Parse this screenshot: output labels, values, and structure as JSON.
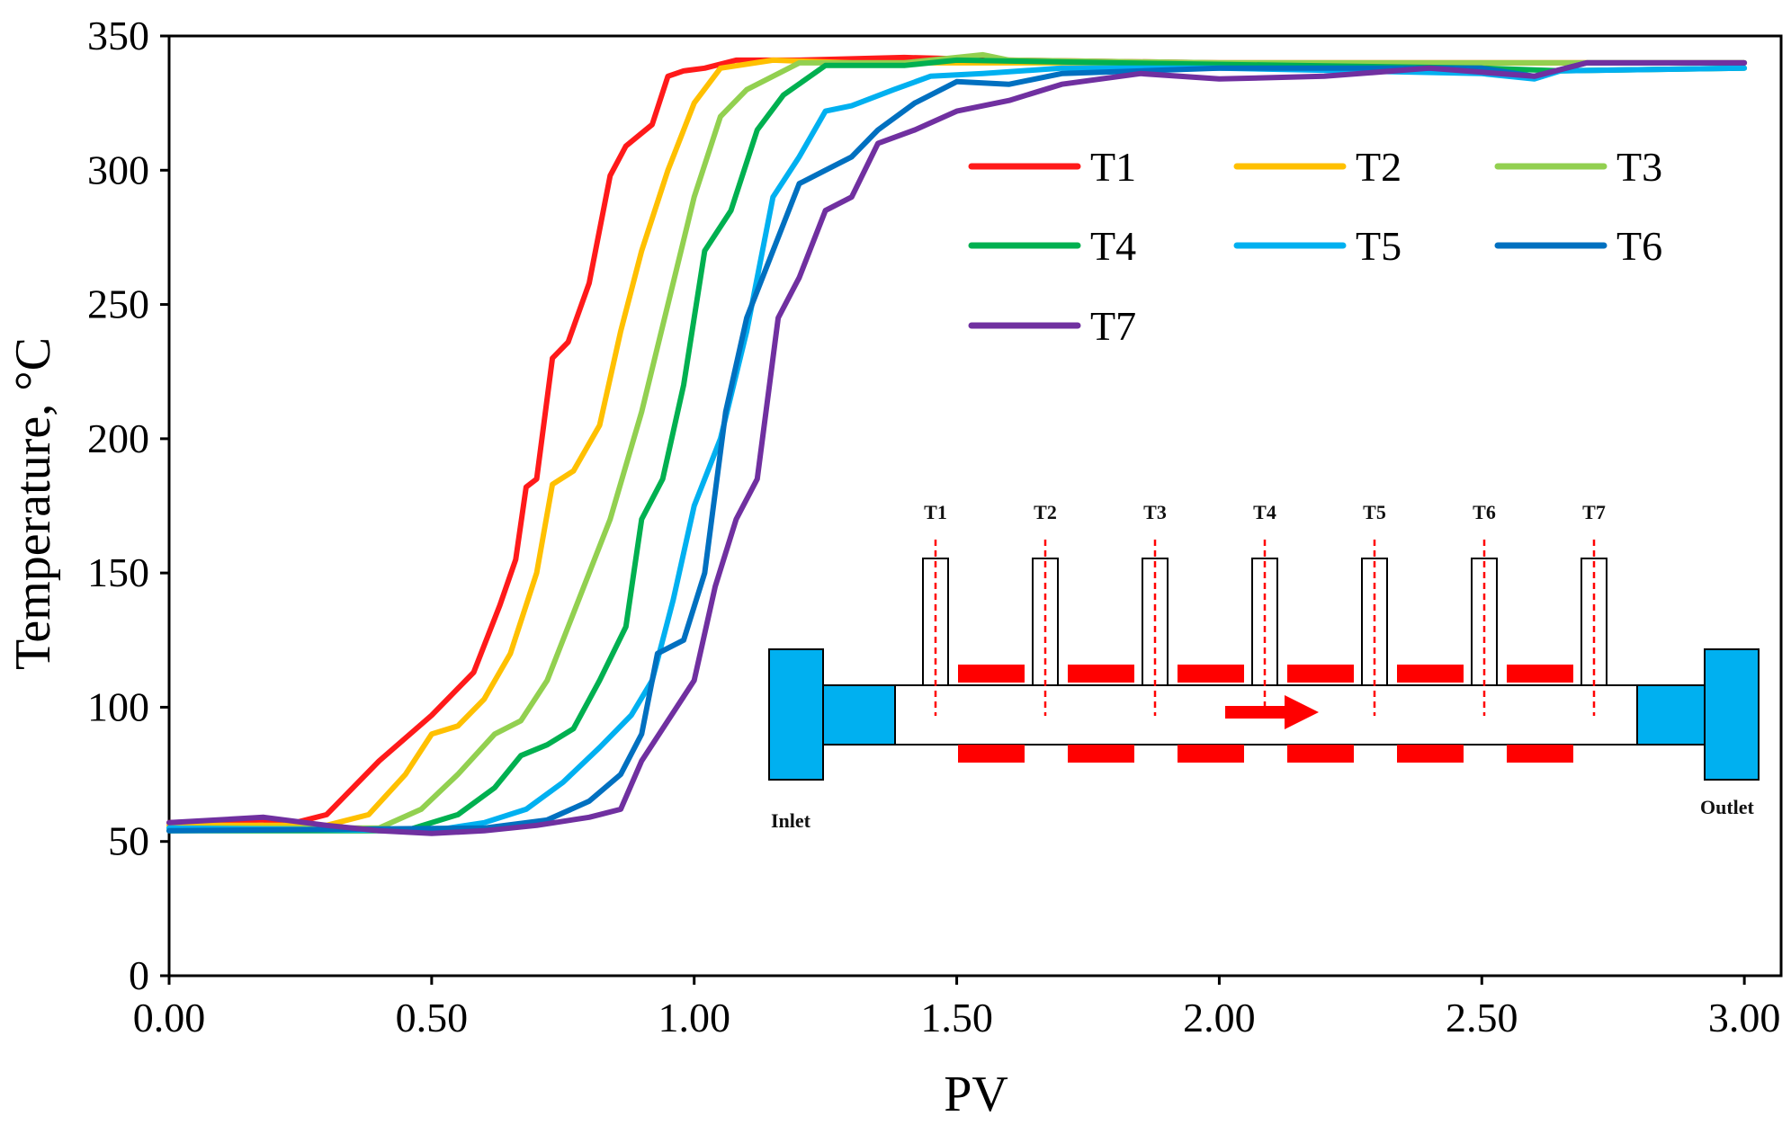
{
  "chart_data": {
    "type": "line",
    "title": "",
    "xlabel": "PV",
    "ylabel": "Temperature, °C",
    "xlim": [
      0,
      3.07
    ],
    "ylim": [
      0,
      350
    ],
    "x_ticks": [
      "0.00",
      "0.50",
      "1.00",
      "1.50",
      "2.00",
      "2.50",
      "3.00"
    ],
    "y_ticks": [
      "0",
      "50",
      "100",
      "150",
      "200",
      "250",
      "300",
      "350"
    ],
    "grid": false,
    "legend_position": "top-right",
    "series": [
      {
        "name": "T1",
        "color": "#ff1a1a",
        "points": [
          [
            0,
            57
          ],
          [
            0.18,
            58
          ],
          [
            0.22,
            56
          ],
          [
            0.3,
            60
          ],
          [
            0.4,
            80
          ],
          [
            0.5,
            97
          ],
          [
            0.58,
            113
          ],
          [
            0.63,
            138
          ],
          [
            0.66,
            155
          ],
          [
            0.68,
            182
          ],
          [
            0.7,
            185
          ],
          [
            0.73,
            230
          ],
          [
            0.76,
            236
          ],
          [
            0.8,
            258
          ],
          [
            0.84,
            298
          ],
          [
            0.87,
            309
          ],
          [
            0.92,
            317
          ],
          [
            0.95,
            335
          ],
          [
            0.98,
            337
          ],
          [
            1.02,
            338
          ],
          [
            1.08,
            341
          ],
          [
            1.2,
            341
          ],
          [
            1.4,
            342
          ],
          [
            1.6,
            341
          ],
          [
            2.0,
            340
          ],
          [
            2.5,
            340
          ],
          [
            3.0,
            340
          ]
        ]
      },
      {
        "name": "T2",
        "color": "#ffc000",
        "points": [
          [
            0,
            56
          ],
          [
            0.3,
            56
          ],
          [
            0.38,
            60
          ],
          [
            0.45,
            75
          ],
          [
            0.5,
            90
          ],
          [
            0.55,
            93
          ],
          [
            0.6,
            103
          ],
          [
            0.65,
            120
          ],
          [
            0.7,
            150
          ],
          [
            0.73,
            183
          ],
          [
            0.77,
            188
          ],
          [
            0.82,
            205
          ],
          [
            0.86,
            240
          ],
          [
            0.9,
            270
          ],
          [
            0.95,
            300
          ],
          [
            1.0,
            325
          ],
          [
            1.05,
            338
          ],
          [
            1.15,
            341
          ],
          [
            1.3,
            340
          ],
          [
            1.5,
            340
          ],
          [
            2.0,
            340
          ],
          [
            2.5,
            340
          ],
          [
            3.0,
            340
          ]
        ]
      },
      {
        "name": "T3",
        "color": "#92d050",
        "points": [
          [
            0,
            55
          ],
          [
            0.4,
            55
          ],
          [
            0.48,
            62
          ],
          [
            0.55,
            75
          ],
          [
            0.62,
            90
          ],
          [
            0.67,
            95
          ],
          [
            0.72,
            110
          ],
          [
            0.78,
            140
          ],
          [
            0.84,
            170
          ],
          [
            0.9,
            210
          ],
          [
            0.95,
            250
          ],
          [
            1.0,
            290
          ],
          [
            1.05,
            320
          ],
          [
            1.1,
            330
          ],
          [
            1.2,
            340
          ],
          [
            1.4,
            340
          ],
          [
            1.55,
            343
          ],
          [
            1.6,
            341
          ],
          [
            2.0,
            340
          ],
          [
            2.5,
            340
          ],
          [
            3.0,
            340
          ]
        ]
      },
      {
        "name": "T4",
        "color": "#00b050",
        "points": [
          [
            0,
            54
          ],
          [
            0.45,
            54
          ],
          [
            0.55,
            60
          ],
          [
            0.62,
            70
          ],
          [
            0.67,
            82
          ],
          [
            0.72,
            86
          ],
          [
            0.77,
            92
          ],
          [
            0.82,
            110
          ],
          [
            0.87,
            130
          ],
          [
            0.9,
            170
          ],
          [
            0.94,
            185
          ],
          [
            0.98,
            220
          ],
          [
            1.02,
            270
          ],
          [
            1.07,
            285
          ],
          [
            1.12,
            315
          ],
          [
            1.17,
            328
          ],
          [
            1.25,
            339
          ],
          [
            1.4,
            339
          ],
          [
            1.5,
            341
          ],
          [
            1.8,
            340
          ],
          [
            2.5,
            338
          ],
          [
            2.65,
            337
          ],
          [
            3.0,
            338
          ]
        ]
      },
      {
        "name": "T5",
        "color": "#00b0f0",
        "points": [
          [
            0,
            55
          ],
          [
            0.5,
            54
          ],
          [
            0.6,
            57
          ],
          [
            0.68,
            62
          ],
          [
            0.75,
            72
          ],
          [
            0.82,
            85
          ],
          [
            0.88,
            97
          ],
          [
            0.92,
            110
          ],
          [
            0.96,
            140
          ],
          [
            1.0,
            175
          ],
          [
            1.05,
            200
          ],
          [
            1.1,
            240
          ],
          [
            1.15,
            290
          ],
          [
            1.2,
            305
          ],
          [
            1.25,
            322
          ],
          [
            1.3,
            324
          ],
          [
            1.38,
            330
          ],
          [
            1.45,
            335
          ],
          [
            1.55,
            336
          ],
          [
            1.7,
            338
          ],
          [
            2.0,
            338
          ],
          [
            2.5,
            336
          ],
          [
            2.6,
            334
          ],
          [
            2.65,
            337
          ],
          [
            3.0,
            338
          ]
        ]
      },
      {
        "name": "T6",
        "color": "#0070c0",
        "points": [
          [
            0,
            54
          ],
          [
            0.6,
            55
          ],
          [
            0.72,
            58
          ],
          [
            0.8,
            65
          ],
          [
            0.86,
            75
          ],
          [
            0.9,
            90
          ],
          [
            0.93,
            120
          ],
          [
            0.98,
            125
          ],
          [
            1.02,
            150
          ],
          [
            1.06,
            210
          ],
          [
            1.1,
            245
          ],
          [
            1.15,
            270
          ],
          [
            1.2,
            295
          ],
          [
            1.25,
            300
          ],
          [
            1.3,
            305
          ],
          [
            1.35,
            315
          ],
          [
            1.42,
            325
          ],
          [
            1.5,
            333
          ],
          [
            1.6,
            332
          ],
          [
            1.7,
            336
          ],
          [
            2.0,
            338
          ],
          [
            2.5,
            338
          ],
          [
            2.6,
            335
          ],
          [
            2.7,
            340
          ],
          [
            3.0,
            340
          ]
        ]
      },
      {
        "name": "T7",
        "color": "#7030a0",
        "points": [
          [
            0,
            57
          ],
          [
            0.18,
            59
          ],
          [
            0.3,
            56
          ],
          [
            0.4,
            54
          ],
          [
            0.5,
            53
          ],
          [
            0.6,
            54
          ],
          [
            0.7,
            56
          ],
          [
            0.8,
            59
          ],
          [
            0.86,
            62
          ],
          [
            0.9,
            80
          ],
          [
            0.95,
            95
          ],
          [
            1.0,
            110
          ],
          [
            1.04,
            145
          ],
          [
            1.08,
            170
          ],
          [
            1.12,
            185
          ],
          [
            1.16,
            245
          ],
          [
            1.2,
            260
          ],
          [
            1.25,
            285
          ],
          [
            1.3,
            290
          ],
          [
            1.35,
            310
          ],
          [
            1.42,
            315
          ],
          [
            1.5,
            322
          ],
          [
            1.6,
            326
          ],
          [
            1.7,
            332
          ],
          [
            1.85,
            336
          ],
          [
            2.0,
            334
          ],
          [
            2.2,
            335
          ],
          [
            2.4,
            338
          ],
          [
            2.6,
            335
          ],
          [
            2.7,
            340
          ],
          [
            3.0,
            340
          ]
        ]
      }
    ]
  },
  "inset": {
    "probe_labels": [
      "T1",
      "T2",
      "T3",
      "T4",
      "T5",
      "T6",
      "T7"
    ],
    "inlet_label": "Inlet",
    "outlet_label": "Outlet",
    "end_cap_color": "#00b0f0",
    "heater_color": "#ff0000",
    "probe_line_color": "#ff0000",
    "arrow_color": "#ff0000"
  }
}
